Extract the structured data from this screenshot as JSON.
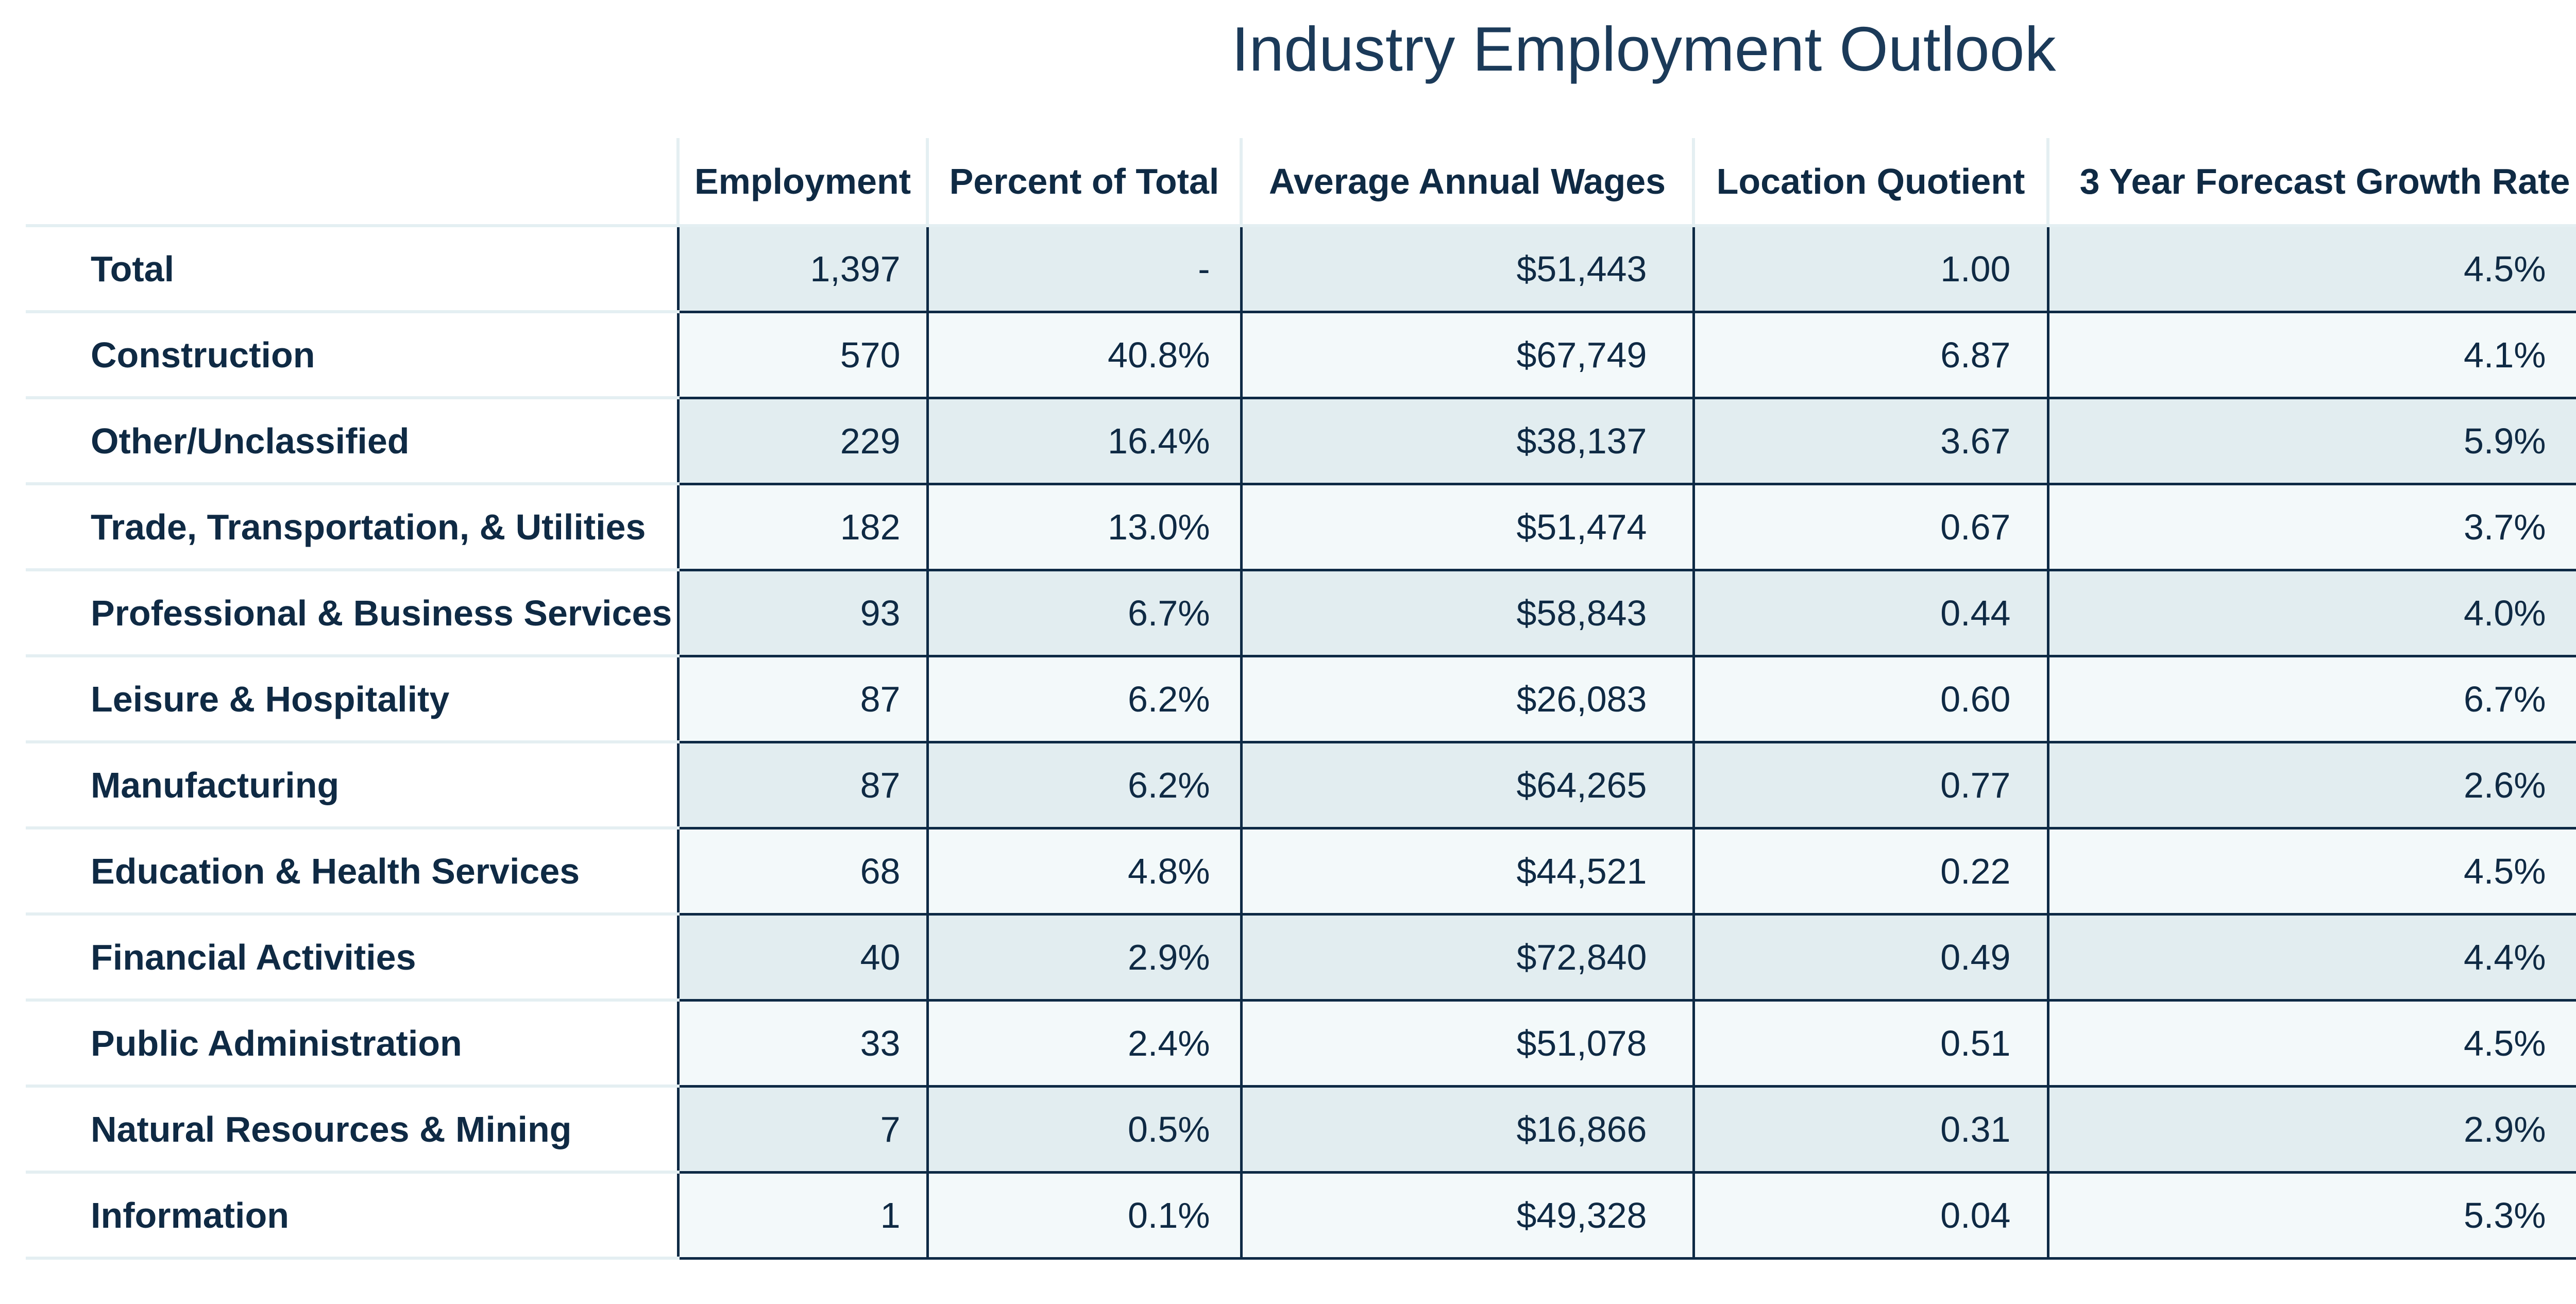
{
  "chart_data": {
    "type": "table",
    "title": "Industry Employment Outlook",
    "columns": [
      "Employment",
      "Percent of Total",
      "Average Annual Wages",
      "Location Quotient",
      "3 Year Forecast Growth Rate"
    ],
    "rows": [
      {
        "label": "Total",
        "employment": "1,397",
        "percent": "-",
        "wages": "$51,443",
        "lq": "1.00",
        "growth": "4.5%"
      },
      {
        "label": "Construction",
        "employment": "570",
        "percent": "40.8%",
        "wages": "$67,749",
        "lq": "6.87",
        "growth": "4.1%"
      },
      {
        "label": "Other/Unclassified",
        "employment": "229",
        "percent": "16.4%",
        "wages": "$38,137",
        "lq": "3.67",
        "growth": "5.9%"
      },
      {
        "label": "Trade, Transportation, & Utilities",
        "employment": "182",
        "percent": "13.0%",
        "wages": "$51,474",
        "lq": "0.67",
        "growth": "3.7%"
      },
      {
        "label": "Professional & Business Services",
        "employment": "93",
        "percent": "6.7%",
        "wages": "$58,843",
        "lq": "0.44",
        "growth": "4.0%"
      },
      {
        "label": "Leisure & Hospitality",
        "employment": "87",
        "percent": "6.2%",
        "wages": "$26,083",
        "lq": "0.60",
        "growth": "6.7%"
      },
      {
        "label": "Manufacturing",
        "employment": "87",
        "percent": "6.2%",
        "wages": "$64,265",
        "lq": "0.77",
        "growth": "2.6%"
      },
      {
        "label": "Education & Health Services",
        "employment": "68",
        "percent": "4.8%",
        "wages": "$44,521",
        "lq": "0.22",
        "growth": "4.5%"
      },
      {
        "label": "Financial Activities",
        "employment": "40",
        "percent": "2.9%",
        "wages": "$72,840",
        "lq": "0.49",
        "growth": "4.4%"
      },
      {
        "label": "Public Administration",
        "employment": "33",
        "percent": "2.4%",
        "wages": "$51,078",
        "lq": "0.51",
        "growth": "4.5%"
      },
      {
        "label": "Natural Resources & Mining",
        "employment": "7",
        "percent": "0.5%",
        "wages": "$16,866",
        "lq": "0.31",
        "growth": "2.9%"
      },
      {
        "label": "Information",
        "employment": "1",
        "percent": "0.1%",
        "wages": "$49,328",
        "lq": "0.04",
        "growth": "5.3%"
      }
    ]
  },
  "colors": {
    "text": "#0f2a44",
    "title": "#1b3a59",
    "cell_border": "#0e2a45",
    "row_odd": "#e2edf0",
    "row_even": "#f3f9fa",
    "light_rule": "#e4eff2"
  }
}
